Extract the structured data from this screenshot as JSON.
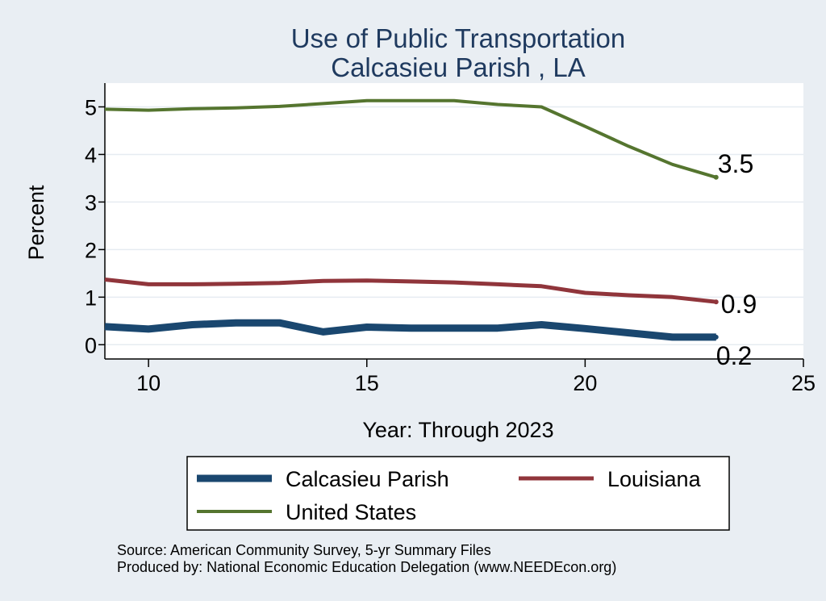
{
  "chart_data": {
    "type": "line",
    "title": [
      "Use of Public Transportation",
      "Calcasieu Parish , LA"
    ],
    "xlabel": "Year: Through 2023",
    "ylabel": "Percent",
    "xlim": [
      9,
      25
    ],
    "ylim": [
      -0.3,
      5.5
    ],
    "x_ticks": [
      10,
      15,
      20,
      25
    ],
    "y_ticks": [
      0,
      1,
      2,
      3,
      4,
      5
    ],
    "grid": true,
    "legend_position": "bottom",
    "series": [
      {
        "name": "Calcasieu Parish",
        "color": "#1a476f",
        "x": [
          9,
          10,
          11,
          12,
          13,
          14,
          15,
          16,
          17,
          18,
          19,
          20,
          21,
          22,
          23
        ],
        "values": [
          0.38,
          0.33,
          0.42,
          0.46,
          0.46,
          0.27,
          0.37,
          0.35,
          0.35,
          0.35,
          0.42,
          0.34,
          0.25,
          0.16,
          0.16
        ],
        "end_label": "0.2"
      },
      {
        "name": "Louisiana",
        "color": "#90353b",
        "x": [
          9,
          10,
          11,
          12,
          13,
          14,
          15,
          16,
          17,
          18,
          19,
          20,
          21,
          22,
          23
        ],
        "values": [
          1.37,
          1.27,
          1.27,
          1.28,
          1.3,
          1.34,
          1.35,
          1.33,
          1.31,
          1.27,
          1.23,
          1.09,
          1.04,
          1.0,
          0.9
        ],
        "end_label": "0.9"
      },
      {
        "name": "United States",
        "color": "#55752f",
        "x": [
          9,
          10,
          11,
          12,
          13,
          14,
          15,
          16,
          17,
          18,
          19,
          20,
          21,
          22,
          23
        ],
        "values": [
          4.95,
          4.93,
          4.96,
          4.98,
          5.01,
          5.07,
          5.13,
          5.13,
          5.13,
          5.05,
          5.0,
          4.59,
          4.17,
          3.79,
          3.52
        ],
        "end_label": "3.5"
      }
    ],
    "notes": [
      "Source: American Community Survey, 5-yr Summary Files",
      "Produced by: National Economic Education Delegation (www.NEEDEcon.org)"
    ]
  }
}
